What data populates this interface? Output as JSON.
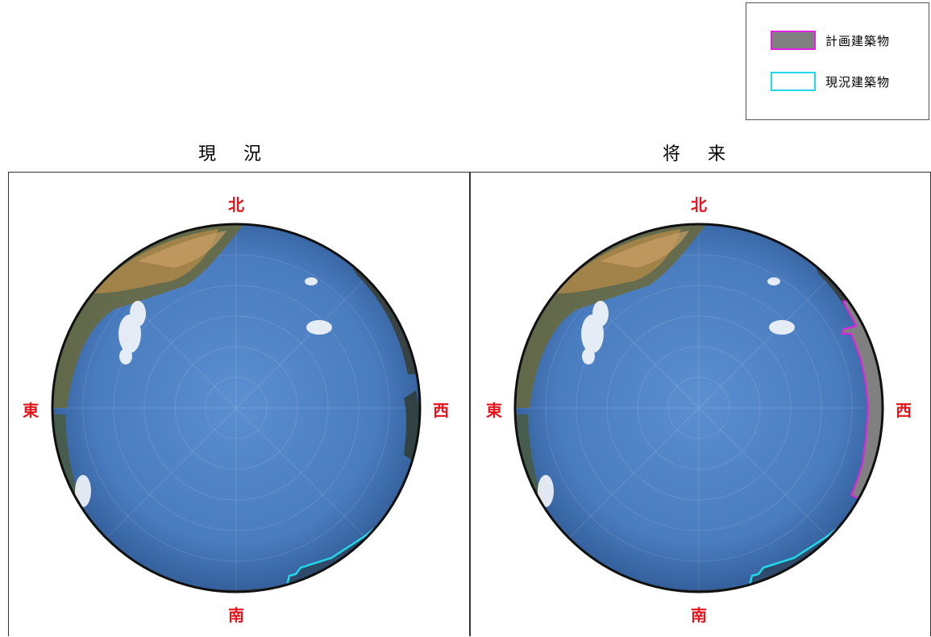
{
  "legend": {
    "items": [
      {
        "label": "計画建築物",
        "fill": "#808080",
        "border": "#e020e0"
      },
      {
        "label": "現況建築物",
        "fill": "#ffffff",
        "border": "#22d8e8"
      }
    ]
  },
  "panels": [
    {
      "title": "現況",
      "directions": {
        "north": "北",
        "south": "南",
        "east": "東",
        "west": "西"
      }
    },
    {
      "title": "将来",
      "directions": {
        "north": "北",
        "south": "南",
        "east": "東",
        "west": "西"
      }
    }
  ],
  "colors": {
    "direction_text": "#e8141c",
    "sky_center": "#5b8fd0",
    "sky_edge": "#2f5a94",
    "planned_outline": "#e020e0",
    "existing_outline": "#22d8e8"
  }
}
